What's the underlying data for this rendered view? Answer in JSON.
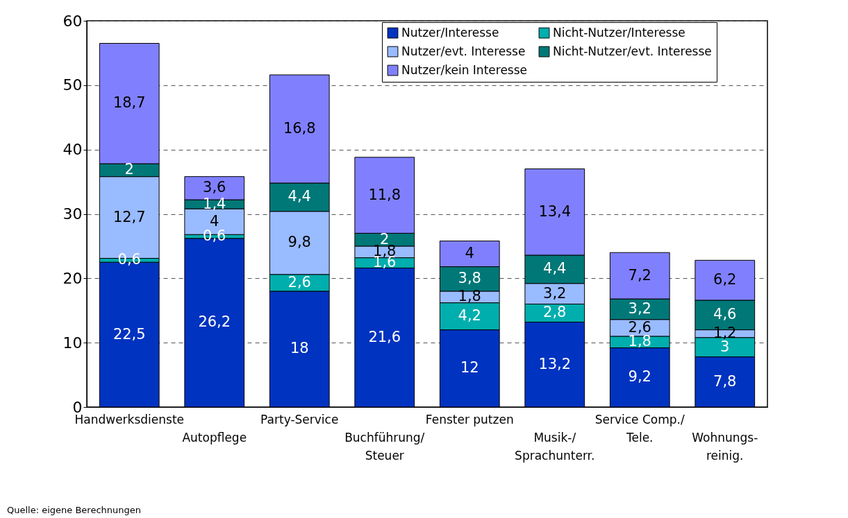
{
  "chart_data": {
    "type": "bar",
    "stacked": true,
    "categories": [
      "Handwerksdienste",
      "Autopflege",
      "Party-Service",
      "Buchführung/\nSteuer",
      "Fenster putzen",
      "Musik-/\nSprachunterr.",
      "Service Comp./\nTele.",
      "Wohnungs-\nreinig."
    ],
    "series": [
      {
        "name": "Nutzer/Interesse",
        "color": "#0033c0",
        "values": [
          22.5,
          26.2,
          18,
          21.6,
          12,
          13.2,
          9.2,
          7.8
        ],
        "value_labels": [
          "22,5",
          "26,2",
          "18",
          "21,6",
          "12",
          "13,2",
          "9,2",
          "7,8"
        ]
      },
      {
        "name": "Nicht-Nutzer/Interesse",
        "color": "#00aeae",
        "values": [
          0.6,
          0.6,
          2.6,
          1.6,
          4.2,
          2.8,
          1.8,
          3
        ],
        "value_labels": [
          "0,6",
          "0,6",
          "2,6",
          "1,6",
          "4,2",
          "2,8",
          "1,8",
          "3"
        ]
      },
      {
        "name": "Nutzer/evt. Interesse",
        "color": "#99bbff",
        "values": [
          12.7,
          4,
          9.8,
          1.8,
          1.8,
          3.2,
          2.6,
          1.2
        ],
        "value_labels": [
          "12,7",
          "4",
          "9,8",
          "1,8",
          "1,8",
          "3,2",
          "2,6",
          "1,2"
        ]
      },
      {
        "name": "Nicht-Nutzer/evt. Interesse",
        "color": "#007878",
        "values": [
          2,
          1.4,
          4.4,
          2,
          3.8,
          4.4,
          3.2,
          4.6
        ],
        "value_labels": [
          "2",
          "1,4",
          "4,4",
          "2",
          "3,8",
          "4,4",
          "3,2",
          "4,6"
        ]
      },
      {
        "name": "Nutzer/kein Interesse",
        "color": "#8080ff",
        "values": [
          18.7,
          3.6,
          16.8,
          11.8,
          4,
          13.4,
          7.2,
          6.2
        ],
        "value_labels": [
          "18,7",
          "3,6",
          "16,8",
          "11,8",
          "4",
          "13,4",
          "7,2",
          "6,2"
        ]
      }
    ],
    "ylim": [
      0,
      60
    ],
    "yticks": [
      0,
      10,
      20,
      30,
      40,
      50,
      60
    ],
    "grid": "y",
    "legend": "top right",
    "annotations": [
      "Quelle: eigene Berechnungen"
    ]
  }
}
